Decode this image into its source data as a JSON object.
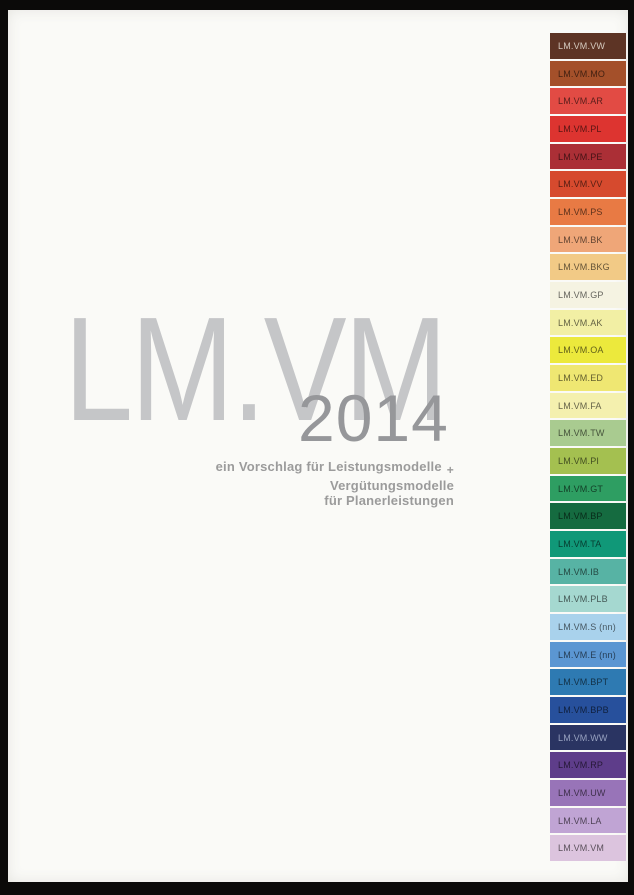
{
  "cover": {
    "title": "LM.VM",
    "year": "2014",
    "subtitle": {
      "line1_pre": "ein Vorschlag für Leistungsmodelle",
      "plus": "+",
      "line1_post": "Vergütungsmodelle",
      "line2": "für Planerleistungen"
    }
  },
  "colors": {
    "paper": "#fafaf7",
    "frame": "#0b0a09",
    "title": "#c5c6c8",
    "year": "#96979a",
    "subtitle": "#9b9b9b",
    "band_label_dark": "rgba(0,0,0,0.6)"
  },
  "palette_strip": {
    "bands": [
      {
        "label": "LM.VM.VW",
        "color": "#5d3425",
        "label_color": "#d5cabe"
      },
      {
        "label": "LM.VM.MO",
        "color": "#a4502a"
      },
      {
        "label": "LM.VM.AR",
        "color": "#e24b44"
      },
      {
        "label": "LM.VM.PL",
        "color": "#dd3430"
      },
      {
        "label": "LM.VM.PE",
        "color": "#ab2f36"
      },
      {
        "label": "LM.VM.VV",
        "color": "#d64a2e"
      },
      {
        "label": "LM.VM.PS",
        "color": "#e87a44"
      },
      {
        "label": "LM.VM.BK",
        "color": "#efa678"
      },
      {
        "label": "LM.VM.BKG",
        "color": "#f2ca86"
      },
      {
        "label": "LM.VM.GP",
        "color": "#f5f3e2"
      },
      {
        "label": "LM.VM.AK",
        "color": "#f2efa4"
      },
      {
        "label": "LM.VM.OA",
        "color": "#ece93c"
      },
      {
        "label": "LM.VM.ED",
        "color": "#efe772"
      },
      {
        "label": "LM.VM.FA",
        "color": "#f4f0ae"
      },
      {
        "label": "LM.VM.TW",
        "color": "#a9cb90"
      },
      {
        "label": "LM.VM.PI",
        "color": "#a4c050"
      },
      {
        "label": "LM.VM.GT",
        "color": "#2e9e62"
      },
      {
        "label": "LM.VM.BP",
        "color": "#156b40"
      },
      {
        "label": "LM.VM.TA",
        "color": "#109878"
      },
      {
        "label": "LM.VM.IB",
        "color": "#57b3a4"
      },
      {
        "label": "LM.VM.PLB",
        "color": "#a5d8d0"
      },
      {
        "label": "LM.VM.S (nn)",
        "color": "#a9d2ec"
      },
      {
        "label": "LM.VM.E (nn)",
        "color": "#5b96d2"
      },
      {
        "label": "LM.VM.BPT",
        "color": "#2e7ab2"
      },
      {
        "label": "LM.VM.BPB",
        "color": "#27509c"
      },
      {
        "label": "LM.VM.WW",
        "color": "#2a3462",
        "label_color": "#98a2c0"
      },
      {
        "label": "LM.VM.RP",
        "color": "#5e3d8a"
      },
      {
        "label": "LM.VM.UW",
        "color": "#9874b8"
      },
      {
        "label": "LM.VM.LA",
        "color": "#c0a4d4"
      },
      {
        "label": "LM.VM.VM",
        "color": "#dcc4de"
      }
    ]
  }
}
